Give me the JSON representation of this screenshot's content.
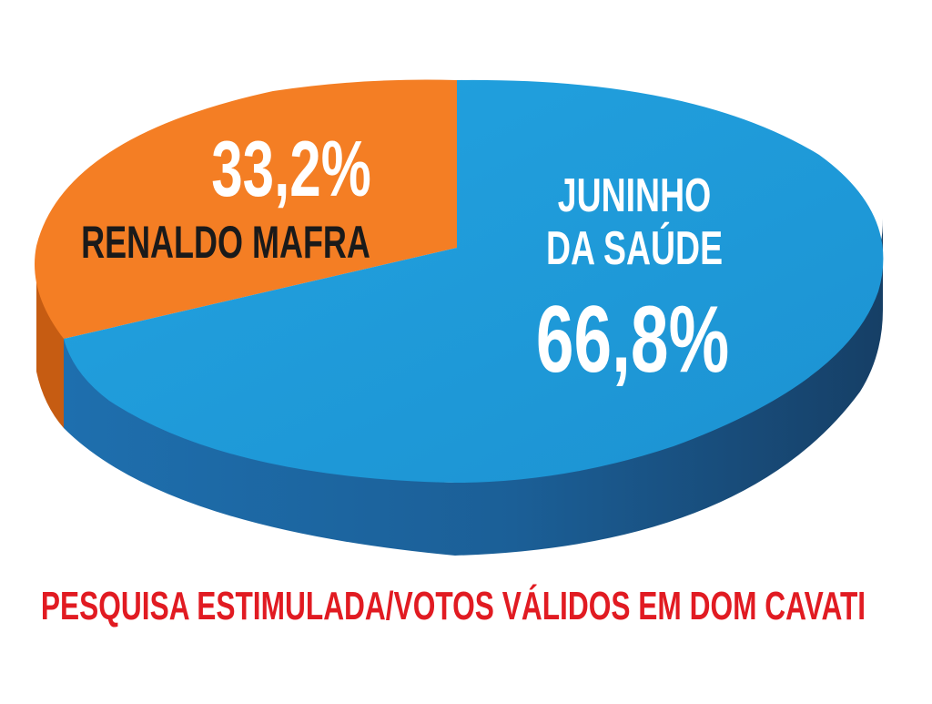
{
  "chart_data": {
    "type": "pie",
    "title": "",
    "footer": "PESQUISA ESTIMULADA/VOTOS VÁLIDOS EM DOM CAVATI",
    "slices": [
      {
        "label_lines": [
          "JUNINHO",
          "DA SAÚDE"
        ],
        "value": 66.8,
        "value_label": "66,8%",
        "color": "#1e9ad8",
        "side_color": "#1a5e93"
      },
      {
        "label_lines": [
          "RENALDO MAFRA"
        ],
        "value": 33.2,
        "value_label": "33,2%",
        "color": "#f47e24",
        "side_color": "#c65c12"
      }
    ],
    "footer_color": "#e11b22",
    "3d": true
  }
}
